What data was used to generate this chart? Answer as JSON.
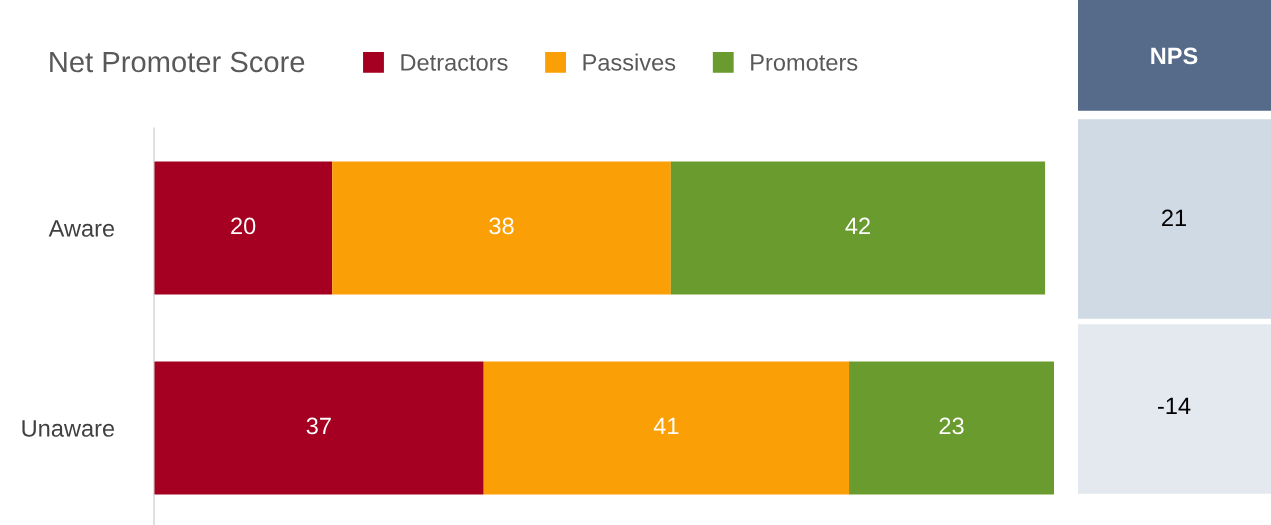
{
  "chart_data": [
    {
      "type": "bar",
      "title": "Net Promoter Score",
      "orientation": "horizontal",
      "stacked": true,
      "data_labels": true,
      "legend": "top",
      "grid": false,
      "tick_labels": "y",
      "categories": [
        "Aware",
        "Unaware"
      ],
      "series": [
        {
          "name": "Detractors",
          "color": "#a50021",
          "values": [
            20,
            37
          ]
        },
        {
          "name": "Passives",
          "color": "#fb9f06",
          "values": [
            38,
            41
          ]
        },
        {
          "name": "Promoters",
          "color": "#6a9b2f",
          "values": [
            42,
            23
          ]
        }
      ]
    },
    {
      "type": "other",
      "title": "NPS",
      "annotations": [
        "21",
        "-14"
      ]
    }
  ]
}
